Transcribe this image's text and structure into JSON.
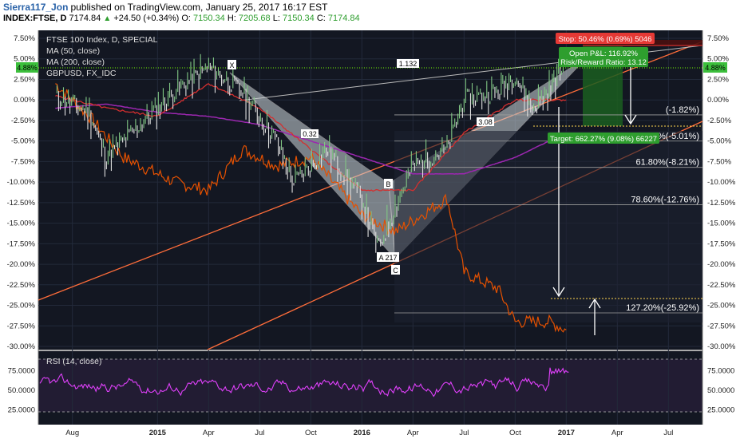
{
  "header": {
    "author": "Sierra117_Jon",
    "published": "published on TradingView.com, January 25, 2017 16:17 EST",
    "symbol": "INDEX:FTSE, D",
    "last": "7174.84",
    "change": "+24.50 (+0.34%)",
    "open_label": "O:",
    "open": "7150.34",
    "high_label": "H:",
    "high": "7205.68",
    "low_label": "L:",
    "low": "7150.34",
    "close_label": "C:",
    "close": "7174.84"
  },
  "legend": {
    "title": "FTSE 100 Index, D, SPECIAL",
    "ma50": "MA (50, close)",
    "ma200": "MA (200, close)",
    "gbpusd": "GBPUSD, FX_IDC"
  },
  "price_badge": "4.88%",
  "pattern_labels": {
    "x": "X",
    "a": "A 217",
    "b": "B",
    "c": "C",
    "r_xab": "0.32",
    "r_abc": "3.08",
    "r_xc": "1.132"
  },
  "fib_levels": [
    {
      "label": "(-1.82%)",
      "pct": -1.82,
      "visible_label": "(-1.82%)"
    },
    {
      "label": "50.00%(-5.01%)",
      "pct": -5.01
    },
    {
      "label": "61.80%(-8.21%)",
      "pct": -8.21
    },
    {
      "label": "78.60%(-12.76%)",
      "pct": -12.76
    },
    {
      "label": "127.20%(-25.92%)",
      "pct": -25.92
    }
  ],
  "trade": {
    "stop": "Stop: 50.46% (0.69%) 5046",
    "open_pl": "Open P&L: 116.92%",
    "rr": "Risk/Reward Ratio: 13.12",
    "target": "Target: 662.27% (9.08%) 66227"
  },
  "rsi": {
    "label": "RSI (14, close)",
    "ticks": [
      "75.0000",
      "50.0000",
      "25.0000"
    ]
  },
  "colors": {
    "price": "#2e7d32",
    "ma50": "#d32f2f",
    "ma200": "#9c27b0",
    "gbpusd": "#e65100",
    "channel": "#ff6d3a",
    "rsi": "#e040fb"
  },
  "chart_data": {
    "type": "line",
    "title": "FTSE 100 Index, D, SPECIAL",
    "y_axis_ticks": [
      "7.50%",
      "5.00%",
      "2.50%",
      "0.00%",
      "-2.50%",
      "-5.00%",
      "-7.50%",
      "-10.00%",
      "-12.50%",
      "-15.00%",
      "-17.50%",
      "-20.00%",
      "-22.50%",
      "-25.00%",
      "-27.50%",
      "-30.00%"
    ],
    "x_axis_ticks": [
      "Aug",
      "2015",
      "Apr",
      "Jul",
      "Oct",
      "2016",
      "Apr",
      "Jul",
      "Oct",
      "2017",
      "Apr",
      "Jul"
    ],
    "ylim": [
      -30,
      7.5
    ],
    "series": [
      {
        "name": "FTSE 100 Index, D, SPECIAL",
        "x": [
          "2014-07",
          "2014-09",
          "2014-10",
          "2014-12",
          "2015-02",
          "2015-04",
          "2015-06",
          "2015-08",
          "2015-09",
          "2015-11",
          "2016-01",
          "2016-02",
          "2016-04",
          "2016-06",
          "2016-07",
          "2016-09",
          "2016-10",
          "2016-11",
          "2016-12",
          "2017-01"
        ],
        "values": [
          0.5,
          -1.5,
          -7,
          -3,
          1,
          4,
          1,
          -5,
          -10,
          -6,
          -12,
          -18,
          -8,
          -6,
          0,
          1,
          3,
          -1,
          1,
          4.88
        ]
      },
      {
        "name": "MA (50, close)",
        "x": [
          "2014-07",
          "2014-10",
          "2015-01",
          "2015-04",
          "2015-07",
          "2015-10",
          "2016-01",
          "2016-04",
          "2016-07",
          "2016-10",
          "2017-01"
        ],
        "values": [
          0.5,
          -1,
          -2,
          2,
          -1,
          -6,
          -11,
          -11,
          -4,
          0,
          0
        ]
      },
      {
        "name": "MA (200, close)",
        "x": [
          "2014-07",
          "2014-10",
          "2015-01",
          "2015-04",
          "2015-07",
          "2015-10",
          "2016-01",
          "2016-04",
          "2016-07",
          "2016-10",
          "2017-01"
        ],
        "values": [
          -1,
          -0.5,
          -1.5,
          -2,
          -3,
          -5,
          -7,
          -9,
          -9,
          -7,
          -4
        ]
      },
      {
        "name": "GBPUSD, FX_IDC",
        "x": [
          "2014-07",
          "2014-09",
          "2014-11",
          "2015-02",
          "2015-04",
          "2015-06",
          "2015-08",
          "2015-10",
          "2016-01",
          "2016-03",
          "2016-06",
          "2016-07",
          "2016-09",
          "2016-10",
          "2016-12",
          "2017-01"
        ],
        "values": [
          2,
          -2,
          -7,
          -10,
          -11,
          -6,
          -8,
          -7,
          -14,
          -16,
          -12,
          -21,
          -23,
          -27,
          -27,
          -28
        ]
      }
    ]
  }
}
